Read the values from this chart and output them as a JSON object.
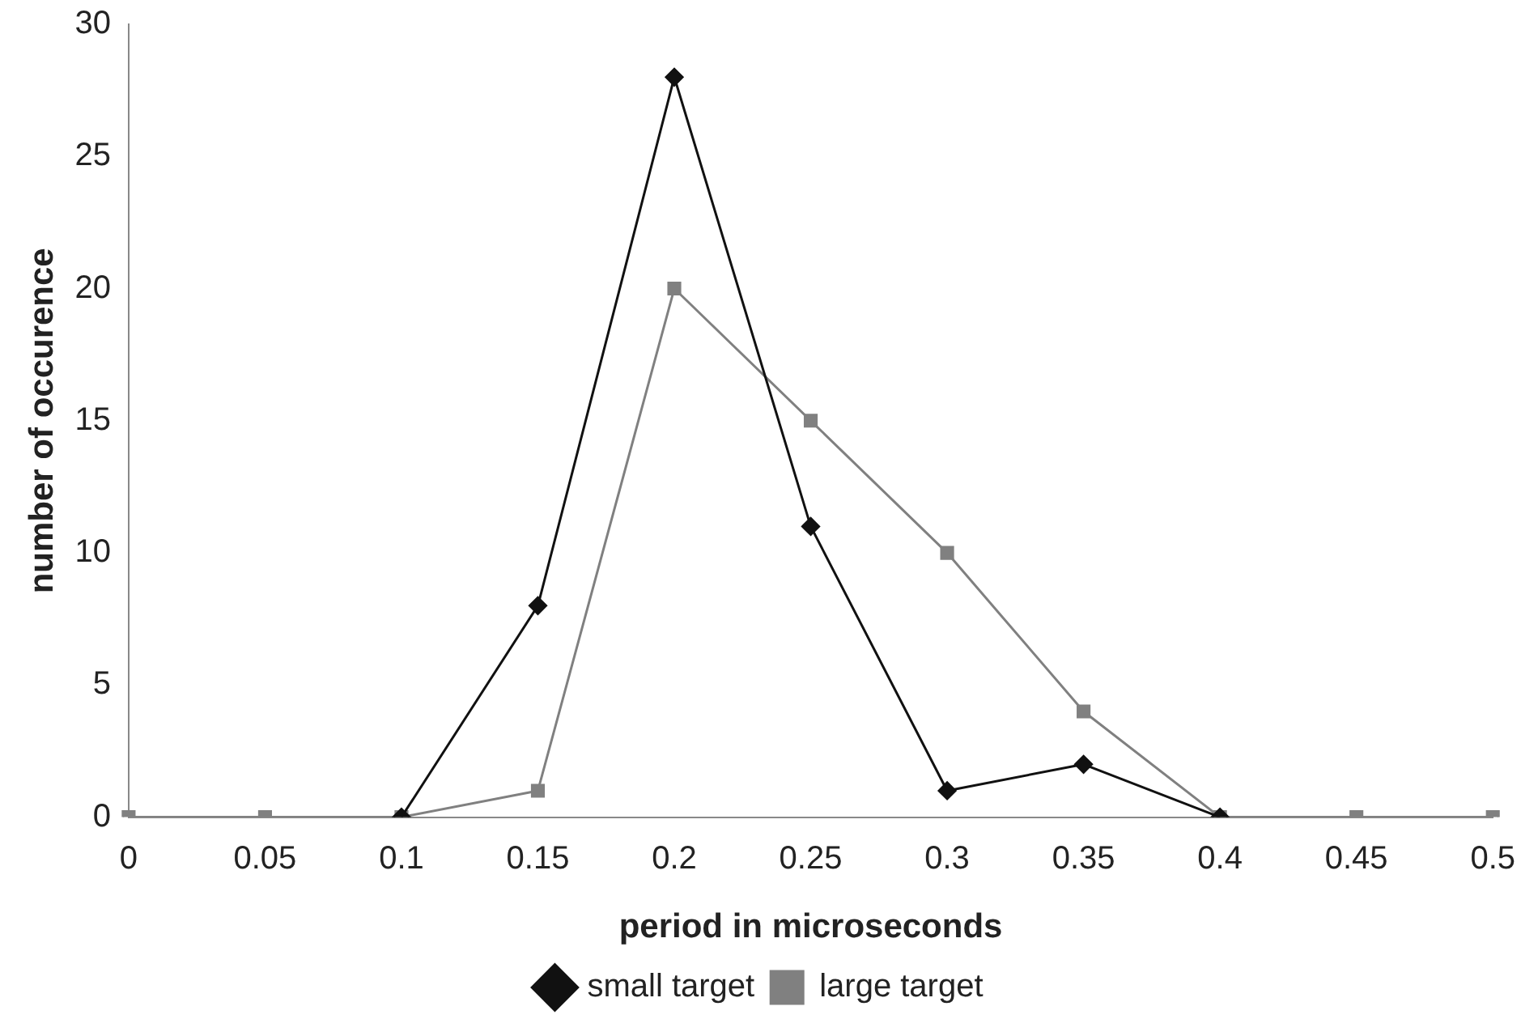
{
  "chart_data": {
    "type": "line",
    "xlabel": "period in microseconds",
    "ylabel": "number of occurence",
    "categories": [
      "0",
      "0.05",
      "0.1",
      "0.15",
      "0.2",
      "0.25",
      "0.3",
      "0.35",
      "0.4",
      "0.45",
      "0.5"
    ],
    "ylim": [
      0,
      30
    ],
    "yticks": [
      0,
      5,
      10,
      15,
      20,
      25,
      30
    ],
    "grid": false,
    "legend": "bottom",
    "series": [
      {
        "name": "small target",
        "color": "#111111",
        "marker": "diamond",
        "values": [
          null,
          null,
          0,
          8,
          28,
          11,
          1,
          2,
          0,
          null,
          null
        ]
      },
      {
        "name": "large target",
        "color": "#808080",
        "marker": "square",
        "values": [
          0,
          0,
          0,
          1,
          20,
          15,
          10,
          4,
          0,
          0,
          0
        ]
      }
    ]
  }
}
